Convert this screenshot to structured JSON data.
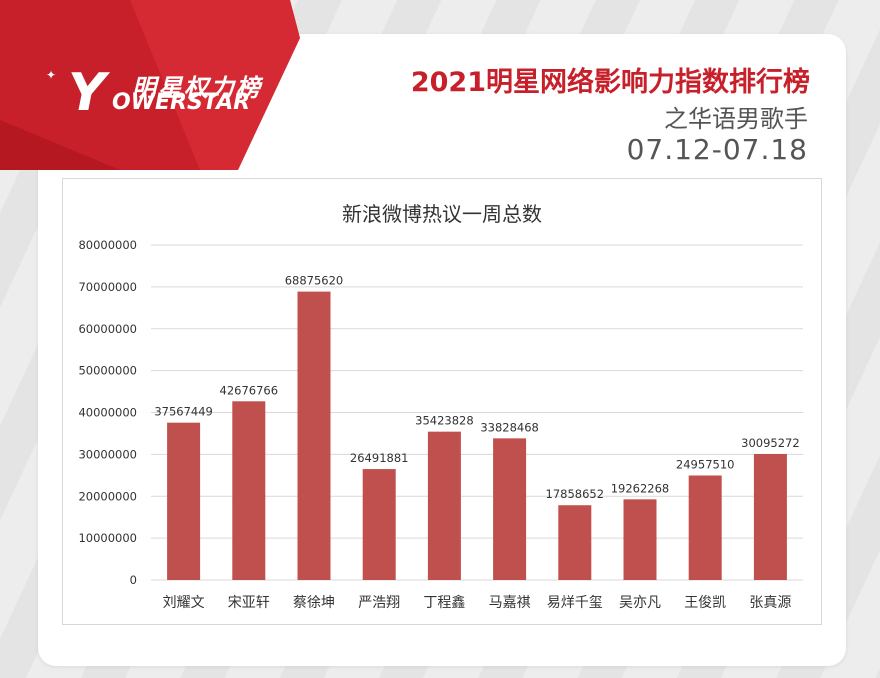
{
  "header": {
    "logo_cn": "明星权力榜",
    "logo_en": "OWERSTAR",
    "logo_letter": "Y",
    "title": "2021明星网络影响力指数排行榜",
    "subtitle": "之华语男歌手",
    "date_range": "07.12-07.18"
  },
  "colors": {
    "brand_red": "#c7202a",
    "bar": "#c0504d",
    "grid": "#d9d9d9",
    "text": "#333333"
  },
  "chart_data": {
    "type": "bar",
    "title": "新浪微博热议一周总数",
    "xlabel": "",
    "ylabel": "",
    "categories": [
      "刘耀文",
      "宋亚轩",
      "蔡徐坤",
      "严浩翔",
      "丁程鑫",
      "马嘉祺",
      "易烊千玺",
      "吴亦凡",
      "王俊凯",
      "张真源"
    ],
    "values": [
      37567449,
      42676766,
      68875620,
      26491881,
      35423828,
      33828468,
      17858652,
      19262268,
      24957510,
      30095272
    ],
    "data_labels": [
      "37567449",
      "42676766",
      "68875620",
      "26491881",
      "35423828",
      "33828468",
      "17858652",
      "19262268",
      "24957510",
      "30095272"
    ],
    "yticks": [
      0,
      10000000,
      20000000,
      30000000,
      40000000,
      50000000,
      60000000,
      70000000,
      80000000
    ],
    "ytick_labels": [
      "0",
      "10000000",
      "20000000",
      "30000000",
      "40000000",
      "50000000",
      "60000000",
      "70000000",
      "80000000"
    ],
    "ylim": [
      0,
      80000000
    ],
    "grid": true,
    "legend": "none"
  }
}
